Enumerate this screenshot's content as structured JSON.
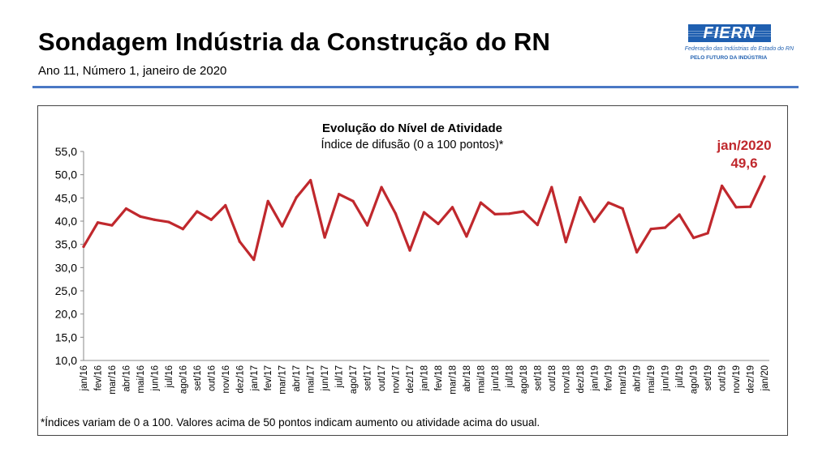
{
  "header": {
    "title": "Sondagem Indústria da Construção do RN",
    "subtitle": "Ano 11, Número 1, janeiro de 2020"
  },
  "logo": {
    "name": "FIERN",
    "tagline": "Federação das Indústrias do Estado do RN",
    "slogan": "PELO FUTURO DA INDÚSTRIA"
  },
  "footnote": "*Índices variam de 0 a 100. Valores acima de 50 pontos indicam aumento ou atividade acima do usual.",
  "chart_data": {
    "type": "line",
    "title": "Evolução do Nível de Atividade",
    "subtitle": "Índice de difusão (0 a 100 pontos)*",
    "callout_label": "jan/2020",
    "callout_value": "49,6",
    "line_color": "#c0282d",
    "ylim": [
      10,
      55
    ],
    "yticks": [
      "10,0",
      "15,0",
      "20,0",
      "25,0",
      "30,0",
      "35,0",
      "40,0",
      "45,0",
      "50,0",
      "55,0"
    ],
    "grid": false,
    "categories": [
      "jan/16",
      "fev/16",
      "mar/16",
      "abr/16",
      "mai/16",
      "jun/16",
      "jul/16",
      "ago/16",
      "set/16",
      "out/16",
      "nov/16",
      "dez/16",
      "jan/17",
      "fev/17",
      "mar/17",
      "abr/17",
      "mai/17",
      "jun/17",
      "jul/17",
      "ago/17",
      "set/17",
      "out/17",
      "nov/17",
      "dez/17",
      "jan/18",
      "fev/18",
      "mar/18",
      "abr/18",
      "mai/18",
      "jun/18",
      "jul/18",
      "ago/18",
      "set/18",
      "out/18",
      "nov/18",
      "dez/18",
      "jan/19",
      "fev/19",
      "mar/19",
      "abr/19",
      "mai/19",
      "jun/19",
      "jul/19",
      "ago/19",
      "set/19",
      "out/19",
      "nov/19",
      "dez/19",
      "jan/20"
    ],
    "series": [
      {
        "values": [
          34.5,
          39.7,
          39.1,
          42.7,
          41.0,
          40.3,
          39.8,
          38.3,
          42.1,
          40.3,
          43.4,
          35.6,
          31.7,
          44.3,
          38.9,
          45.1,
          48.8,
          36.5,
          45.8,
          44.3,
          39.1,
          47.3,
          41.6,
          33.7,
          41.9,
          39.4,
          43.0,
          36.7,
          44.0,
          41.5,
          41.6,
          42.1,
          39.2,
          47.3,
          35.5,
          45.1,
          39.9,
          44.0,
          42.7,
          33.3,
          38.3,
          38.6,
          41.4,
          36.4,
          37.4,
          47.6,
          43.0,
          43.1,
          49.6
        ]
      }
    ]
  }
}
